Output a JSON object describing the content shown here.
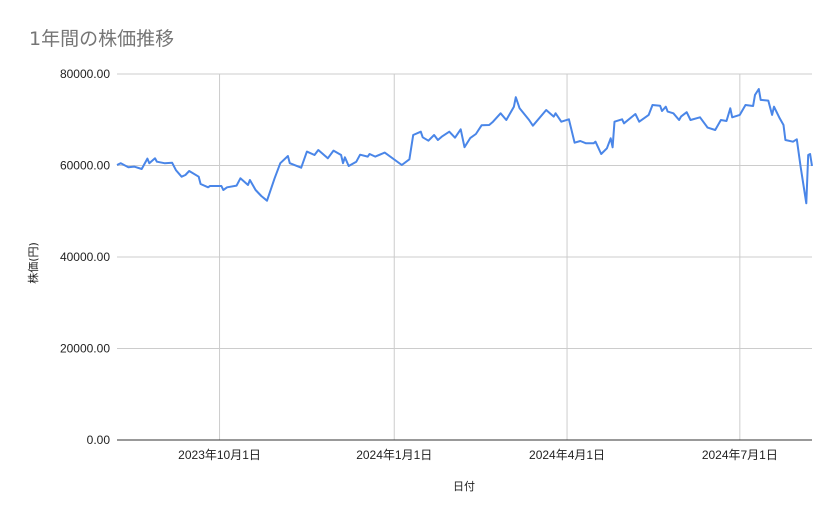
{
  "chart_data": {
    "type": "line",
    "title": "1年間の株価推移",
    "xlabel": "日付",
    "ylabel": "株価(円)",
    "xlim": [
      "2023-08-08",
      "2024-08-08"
    ],
    "ylim": [
      0,
      80000
    ],
    "yticks": [
      "0.00",
      "20000.00",
      "40000.00",
      "60000.00",
      "80000.00"
    ],
    "ytick_values": [
      0,
      20000,
      40000,
      60000,
      80000
    ],
    "xticks": [
      "2023年10月1日",
      "2024年1月1日",
      "2024年4月1日",
      "2024年7月1日"
    ],
    "xtick_values": [
      "2023-10-01",
      "2024-01-01",
      "2024-04-01",
      "2024-07-01"
    ],
    "grid": true,
    "legend": "none",
    "series": [
      {
        "color": "#4a86e8",
        "x": [
          "2023-08-08",
          "2023-08-10",
          "2023-08-14",
          "2023-08-17",
          "2023-08-21",
          "2023-08-24",
          "2023-08-25",
          "2023-08-28",
          "2023-08-29",
          "2023-09-02",
          "2023-09-06",
          "2023-09-08",
          "2023-09-11",
          "2023-09-13",
          "2023-09-15",
          "2023-09-20",
          "2023-09-21",
          "2023-09-25",
          "2023-09-26",
          "2023-10-02",
          "2023-10-03",
          "2023-10-05",
          "2023-10-10",
          "2023-10-12",
          "2023-10-16",
          "2023-10-17",
          "2023-10-20",
          "2023-10-23",
          "2023-10-26",
          "2023-10-30",
          "2023-11-02",
          "2023-11-06",
          "2023-11-07",
          "2023-11-13",
          "2023-11-16",
          "2023-11-20",
          "2023-11-22",
          "2023-11-27",
          "2023-11-30",
          "2023-12-04",
          "2023-12-05",
          "2023-12-06",
          "2023-12-08",
          "2023-12-12",
          "2023-12-14",
          "2023-12-18",
          "2023-12-19",
          "2023-12-22",
          "2023-12-27",
          "2024-01-05",
          "2024-01-09",
          "2024-01-11",
          "2024-01-15",
          "2024-01-16",
          "2024-01-19",
          "2024-01-22",
          "2024-01-24",
          "2024-01-26",
          "2024-01-30",
          "2024-02-02",
          "2024-02-05",
          "2024-02-07",
          "2024-02-10",
          "2024-02-13",
          "2024-02-16",
          "2024-02-20",
          "2024-02-22",
          "2024-02-26",
          "2024-02-29",
          "2024-03-04",
          "2024-03-05",
          "2024-03-07",
          "2024-03-12",
          "2024-03-14",
          "2024-03-21",
          "2024-03-25",
          "2024-03-26",
          "2024-03-29",
          "2024-04-02",
          "2024-04-05",
          "2024-04-08",
          "2024-04-11",
          "2024-04-15",
          "2024-04-16",
          "2024-04-19",
          "2024-04-22",
          "2024-04-24",
          "2024-04-25",
          "2024-04-26",
          "2024-04-30",
          "2024-05-01",
          "2024-05-07",
          "2024-05-09",
          "2024-05-14",
          "2024-05-16",
          "2024-05-20",
          "2024-05-21",
          "2024-05-23",
          "2024-05-24",
          "2024-05-27",
          "2024-05-30",
          "2024-05-31",
          "2024-06-03",
          "2024-06-05",
          "2024-06-10",
          "2024-06-14",
          "2024-06-18",
          "2024-06-21",
          "2024-06-24",
          "2024-06-26",
          "2024-06-27",
          "2024-07-01",
          "2024-07-04",
          "2024-07-08",
          "2024-07-09",
          "2024-07-11",
          "2024-07-12",
          "2024-07-16",
          "2024-07-18",
          "2024-07-19",
          "2024-07-22",
          "2024-07-24",
          "2024-07-25",
          "2024-07-29",
          "2024-07-31",
          "2024-08-02",
          "2024-08-05",
          "2024-08-06",
          "2024-08-07",
          "2024-08-08"
        ],
        "values": [
          60100,
          60500,
          59600,
          59750,
          59240,
          61500,
          60500,
          61580,
          60840,
          60500,
          60620,
          59000,
          57560,
          57930,
          58800,
          57560,
          55960,
          55240,
          55530,
          55530,
          54650,
          55240,
          55600,
          57200,
          55740,
          56840,
          54650,
          53340,
          52310,
          57200,
          60500,
          62080,
          60500,
          59530,
          63030,
          62300,
          63390,
          61580,
          63250,
          62300,
          60500,
          61800,
          59900,
          60840,
          62370,
          61950,
          62520,
          61950,
          62810,
          60110,
          61360,
          66670,
          67390,
          66170,
          65430,
          66670,
          65580,
          66300,
          67390,
          66080,
          67910,
          64000,
          66000,
          66890,
          68790,
          68860,
          69580,
          71420,
          69950,
          72860,
          74920,
          72510,
          69950,
          68710,
          72140,
          70680,
          71420,
          69580,
          70100,
          64990,
          65360,
          64850,
          64850,
          65210,
          62520,
          63760,
          65950,
          63970,
          69580,
          70100,
          69220,
          71260,
          69580,
          71050,
          73230,
          73080,
          71920,
          72860,
          71780,
          71420,
          69950,
          70680,
          71640,
          69950,
          70530,
          68280,
          67770,
          69950,
          69730,
          72510,
          70530,
          71050,
          73230,
          73010,
          75430,
          76730,
          74340,
          74190,
          71050,
          72860,
          70310,
          68860,
          65580,
          65210,
          65730,
          59750,
          51740,
          62300,
          62520,
          59900
        ]
      }
    ]
  }
}
